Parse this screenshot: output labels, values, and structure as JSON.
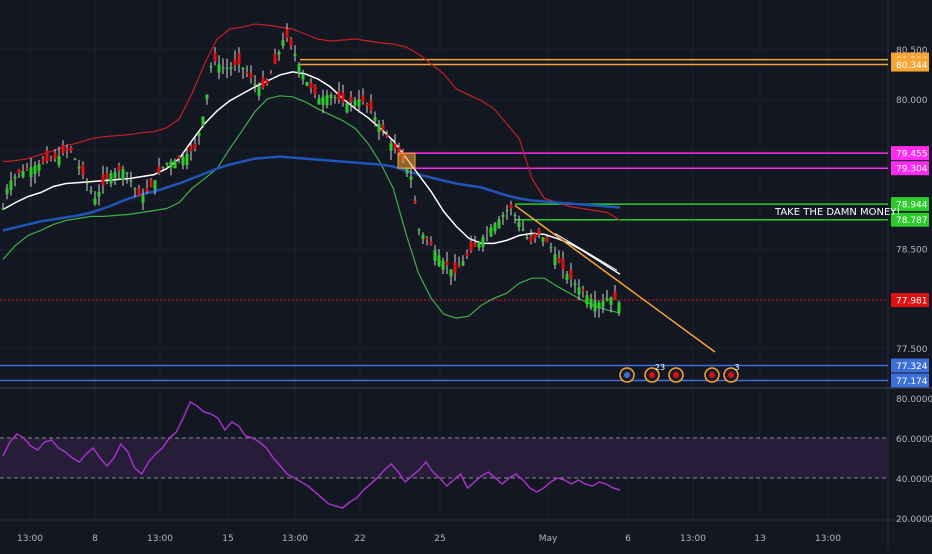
{
  "chart_data": [
    {
      "type": "candlestick",
      "title": "",
      "xlabel": "",
      "ylabel": "",
      "ylim": [
        77.15,
        80.75
      ],
      "x_tick_labels": [
        "13:00",
        "8",
        "13:00",
        "15",
        "13:00",
        "22",
        "25",
        "May",
        "6",
        "13:00",
        "13",
        "13:00"
      ],
      "y_tick_labels": [
        "80.500",
        "80.000",
        "78.500",
        "77.500"
      ],
      "price_lines": [
        {
          "label": "80.394",
          "value": 80.394,
          "color": "#f7a436"
        },
        {
          "label": "80.344",
          "value": 80.344,
          "color": "#f7a436"
        },
        {
          "label": "79.455",
          "value": 79.455,
          "color": "#ff2bf0"
        },
        {
          "label": "79.304",
          "value": 79.304,
          "color": "#ff2bf0"
        },
        {
          "label": "78.944",
          "value": 78.944,
          "color": "#2ccc2c"
        },
        {
          "label": "78.787",
          "value": 78.787,
          "color": "#2ccc2c"
        },
        {
          "label": "77.981",
          "value": 77.981,
          "color": "#e01010"
        },
        {
          "label": "77.324",
          "value": 77.324,
          "color": "#3d6fd8"
        },
        {
          "label": "77.174",
          "value": 77.174,
          "color": "#3d6fd8"
        }
      ],
      "annotation": "TAKE THE DAMN MONEY!",
      "trendline": {
        "from_price": 78.93,
        "to_price": 77.46
      },
      "event_badges": [
        "23",
        "3"
      ],
      "last_price": 77.981,
      "bollinger_upper": [
        79.37,
        79.38,
        79.4,
        79.44,
        79.48,
        79.53,
        79.56,
        79.6,
        79.62,
        79.63,
        79.64,
        79.66,
        79.67,
        79.71,
        79.8,
        80.05,
        80.35,
        80.6,
        80.7,
        80.72,
        80.75,
        80.74,
        80.72,
        80.7,
        80.65,
        80.6,
        80.58,
        80.59,
        80.6,
        80.58,
        80.56,
        80.55,
        80.52,
        80.45,
        80.35,
        80.25,
        80.1,
        80.04,
        79.98,
        79.9,
        79.75,
        79.6,
        79.2,
        79.0,
        78.96,
        78.92,
        78.9,
        78.88,
        78.86,
        78.78
      ],
      "bollinger_middle": [
        78.89,
        78.96,
        79.02,
        79.06,
        79.12,
        79.15,
        79.16,
        79.17,
        79.18,
        79.19,
        79.2,
        79.22,
        79.24,
        79.3,
        79.4,
        79.58,
        79.75,
        79.88,
        79.98,
        80.05,
        80.12,
        80.18,
        80.24,
        80.27,
        80.25,
        80.2,
        80.12,
        80.0,
        79.9,
        79.81,
        79.7,
        79.58,
        79.41,
        79.24,
        79.07,
        78.87,
        78.72,
        78.6,
        78.55,
        78.55,
        78.58,
        78.63,
        78.65,
        78.64,
        78.6,
        78.55,
        78.48,
        78.4,
        78.32,
        78.24
      ],
      "bollinger_lower": [
        78.39,
        78.53,
        78.63,
        78.68,
        78.74,
        78.78,
        78.8,
        78.82,
        78.82,
        78.83,
        78.84,
        78.86,
        78.88,
        78.9,
        78.96,
        79.1,
        79.2,
        79.3,
        79.5,
        79.68,
        79.87,
        80.0,
        80.03,
        80.02,
        79.97,
        79.9,
        79.84,
        79.78,
        79.7,
        79.55,
        79.35,
        79.1,
        78.65,
        78.25,
        78.0,
        77.84,
        77.8,
        77.82,
        77.93,
        78.0,
        78.05,
        78.15,
        78.2,
        78.2,
        78.12,
        78.05,
        77.98,
        77.92,
        77.88,
        77.85
      ],
      "ema_200": [
        78.68,
        78.71,
        78.74,
        78.77,
        78.79,
        78.81,
        78.83,
        78.86,
        78.9,
        78.95,
        79.0,
        79.04,
        79.07,
        79.11,
        79.15,
        79.2,
        79.25,
        79.3,
        79.34,
        79.37,
        79.4,
        79.41,
        79.42,
        79.41,
        79.4,
        79.39,
        79.38,
        79.37,
        79.36,
        79.35,
        79.34,
        79.32,
        79.28,
        79.24,
        79.21,
        79.18,
        79.15,
        79.13,
        79.11,
        79.07,
        79.03,
        79.0,
        78.98,
        78.97,
        78.96,
        78.95,
        78.94,
        78.93,
        78.92,
        78.91
      ]
    },
    {
      "type": "line",
      "title": "",
      "xlabel": "",
      "ylabel": "",
      "ylim": [
        20,
        80
      ],
      "y_tick_labels": [
        "80.0000",
        "60.0000",
        "40.0000",
        "20.0000"
      ],
      "band": [
        40,
        60
      ],
      "rsi": [
        51,
        58,
        62,
        60,
        56,
        54,
        58,
        59,
        55,
        53,
        50,
        48,
        52,
        55,
        50,
        46,
        50,
        57,
        53,
        45,
        42,
        48,
        52,
        55,
        60,
        63,
        70,
        78,
        76,
        73,
        72,
        70,
        64,
        68,
        66,
        61,
        60,
        58,
        55,
        50,
        46,
        42,
        40,
        38,
        36,
        33,
        30,
        27,
        26,
        25,
        28,
        30,
        34,
        37,
        40,
        44,
        47,
        43,
        38,
        41,
        44,
        48,
        43,
        40,
        36,
        39,
        42,
        35,
        38,
        41,
        43,
        40,
        37,
        40,
        42,
        39,
        35,
        33,
        35,
        38,
        40,
        39,
        37,
        39,
        37,
        36,
        38,
        37,
        35,
        34
      ]
    }
  ]
}
